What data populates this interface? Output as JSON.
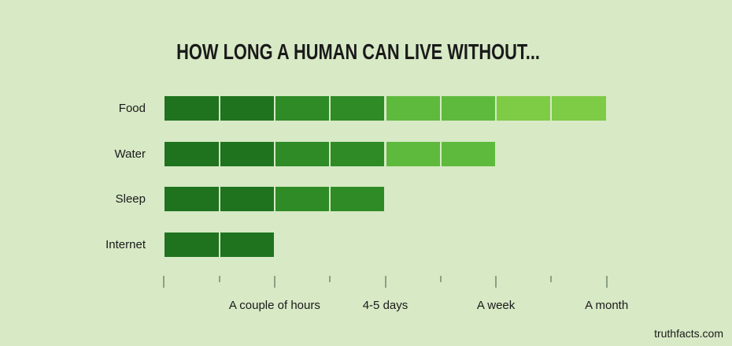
{
  "page": {
    "background": "#d7e9c5",
    "text_color": "#1a1a1a",
    "watermark": "truthfacts.com"
  },
  "chart_data": {
    "type": "bar",
    "orientation": "horizontal",
    "title": "HOW LONG A HUMAN CAN LIVE WITHOUT...",
    "categories": [
      "Food",
      "Water",
      "Sleep",
      "Internet"
    ],
    "series": [
      {
        "name": "survival-duration",
        "values_in_segments": [
          8,
          6,
          4,
          2
        ],
        "values_as_labels": [
          "A month",
          "A week",
          "4-5 days",
          "A couple of hours"
        ]
      }
    ],
    "x_axis": {
      "range_segments": [
        0,
        8
      ],
      "minor_tick_every_segments": 1,
      "major_tick_every_segments": 2,
      "tick_labels": [
        "A couple of hours",
        "4-5 days",
        "A week",
        "A month"
      ],
      "tick_label_segment_positions": [
        2,
        4,
        6,
        8
      ]
    },
    "segment_colors": [
      "#1f731f",
      "#1f731f",
      "#2e8b26",
      "#2e8b26",
      "#5eba3d",
      "#5eba3d",
      "#7ecb45",
      "#7ecb45"
    ],
    "tick_color": "#8ba184",
    "grid": false,
    "legend": false
  }
}
